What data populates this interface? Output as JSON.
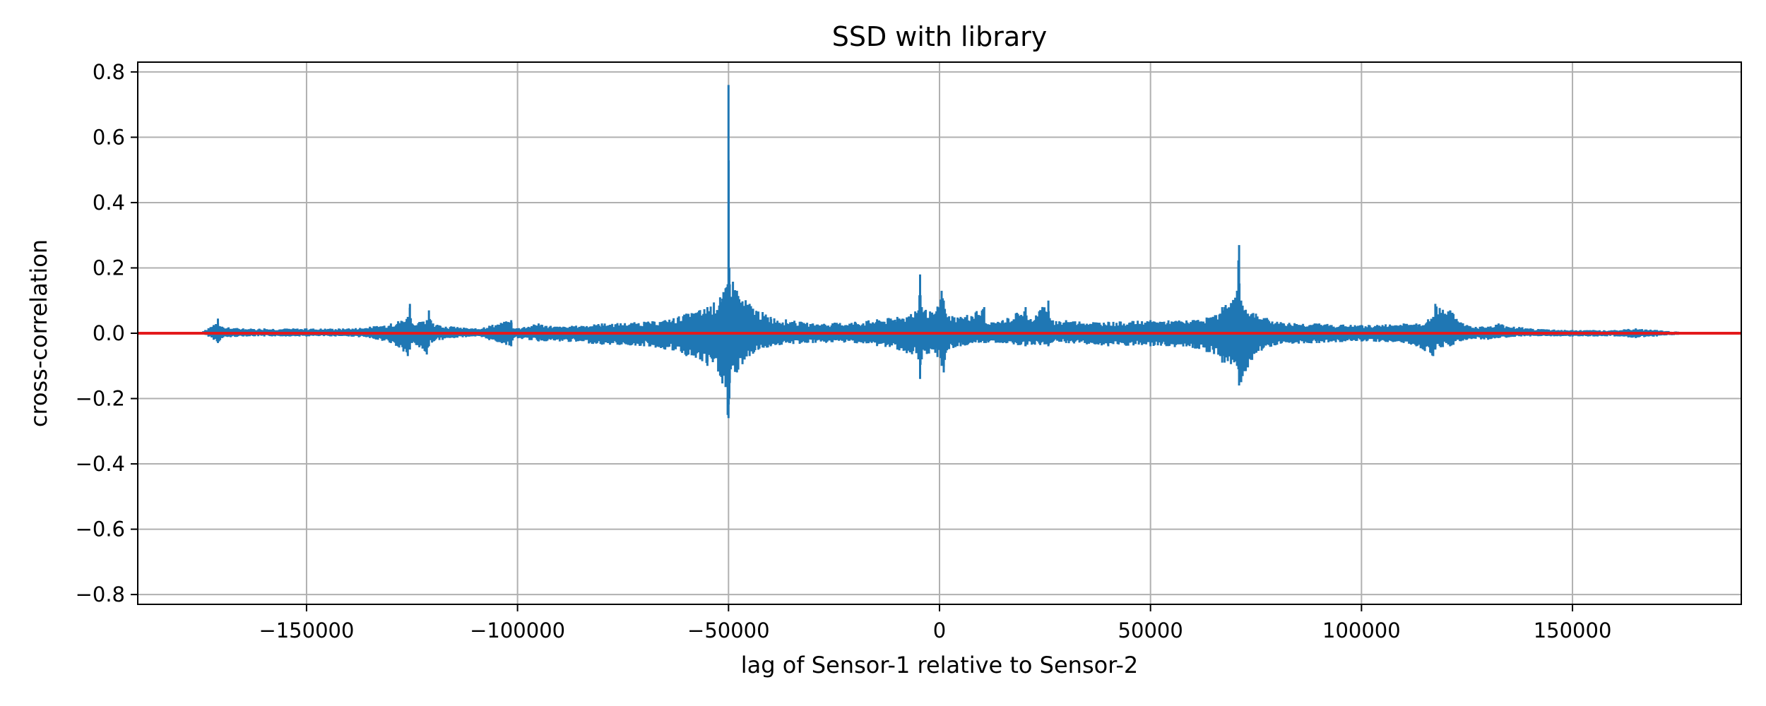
{
  "chart_data": {
    "type": "line",
    "title": "SSD with library",
    "xlabel": "lag of Sensor-1 relative to Sensor-2",
    "ylabel": "cross-correlation",
    "xlim": [
      -190000,
      190000
    ],
    "ylim": [
      -0.83,
      0.83
    ],
    "xticks": [
      -150000,
      -100000,
      -50000,
      0,
      50000,
      100000,
      150000
    ],
    "xtick_labels": [
      "−150000",
      "−100000",
      "−50000",
      "0",
      "50000",
      "100000",
      "150000"
    ],
    "yticks": [
      0.8,
      0.6,
      0.4,
      0.2,
      0.0,
      -0.2,
      -0.4,
      -0.6,
      -0.8
    ],
    "ytick_labels": [
      "0.8",
      "0.6",
      "0.4",
      "0.2",
      "0.0",
      "−0.2",
      "−0.4",
      "−0.6",
      "−0.8"
    ],
    "grid": true,
    "series": [
      {
        "color": "#1f77b4",
        "x": [
          -176000,
          -174000,
          -172000,
          -171000,
          -170000,
          -165000,
          -160000,
          -150000,
          -140000,
          -135000,
          -130000,
          -126000,
          -125500,
          -125000,
          -121500,
          -121000,
          -120000,
          -115000,
          -110000,
          -101500,
          -101000,
          -95000,
          -90000,
          -80000,
          -70000,
          -65000,
          -60000,
          -55000,
          -52000,
          -50200,
          -50000,
          -49800,
          -48000,
          -45000,
          -40000,
          -30000,
          -20000,
          -10000,
          -5000,
          -4600,
          -4200,
          -1000,
          500,
          1000,
          1500,
          5000,
          10600,
          11000,
          15000,
          20400,
          20800,
          25800,
          26200,
          30000,
          40000,
          50000,
          60000,
          66500,
          67000,
          70500,
          71000,
          71500,
          75000,
          80000,
          90000,
          100000,
          110000,
          113000,
          117000,
          117500,
          121000,
          125000,
          130000,
          132500,
          140000,
          150000,
          160000,
          165000,
          170000,
          175000,
          176000
        ],
        "upper": [
          0.0,
          0.01,
          0.025,
          0.045,
          0.02,
          0.015,
          0.015,
          0.015,
          0.015,
          0.02,
          0.03,
          0.05,
          0.09,
          0.03,
          0.04,
          0.07,
          0.03,
          0.02,
          0.015,
          0.04,
          0.015,
          0.03,
          0.02,
          0.03,
          0.035,
          0.04,
          0.06,
          0.08,
          0.11,
          0.15,
          0.76,
          0.2,
          0.13,
          0.09,
          0.05,
          0.03,
          0.035,
          0.05,
          0.07,
          0.18,
          0.08,
          0.06,
          0.13,
          0.1,
          0.06,
          0.05,
          0.08,
          0.03,
          0.04,
          0.08,
          0.04,
          0.1,
          0.04,
          0.04,
          0.035,
          0.04,
          0.04,
          0.06,
          0.08,
          0.13,
          0.27,
          0.1,
          0.06,
          0.035,
          0.03,
          0.025,
          0.03,
          0.03,
          0.05,
          0.09,
          0.07,
          0.025,
          0.02,
          0.03,
          0.015,
          0.01,
          0.01,
          0.015,
          0.01,
          0.005,
          0.0
        ],
        "lower": [
          0.0,
          -0.005,
          -0.02,
          -0.03,
          -0.015,
          -0.01,
          -0.01,
          -0.01,
          -0.01,
          -0.015,
          -0.03,
          -0.07,
          -0.05,
          -0.03,
          -0.065,
          -0.04,
          -0.025,
          -0.015,
          -0.01,
          -0.04,
          -0.015,
          -0.025,
          -0.025,
          -0.035,
          -0.04,
          -0.05,
          -0.07,
          -0.1,
          -0.13,
          -0.25,
          -0.26,
          -0.2,
          -0.12,
          -0.07,
          -0.04,
          -0.03,
          -0.03,
          -0.05,
          -0.08,
          -0.14,
          -0.08,
          -0.06,
          -0.1,
          -0.12,
          -0.06,
          -0.04,
          -0.03,
          -0.03,
          -0.03,
          -0.04,
          -0.035,
          -0.04,
          -0.03,
          -0.03,
          -0.04,
          -0.04,
          -0.045,
          -0.07,
          -0.09,
          -0.1,
          -0.16,
          -0.15,
          -0.06,
          -0.035,
          -0.03,
          -0.025,
          -0.03,
          -0.04,
          -0.07,
          -0.05,
          -0.04,
          -0.02,
          -0.02,
          -0.015,
          -0.01,
          -0.01,
          -0.01,
          -0.015,
          -0.01,
          -0.005,
          0.0
        ]
      },
      {
        "color": "#e31a1c",
        "x": [
          -190000,
          190000
        ],
        "values": [
          0.0,
          0.0
        ]
      }
    ]
  }
}
